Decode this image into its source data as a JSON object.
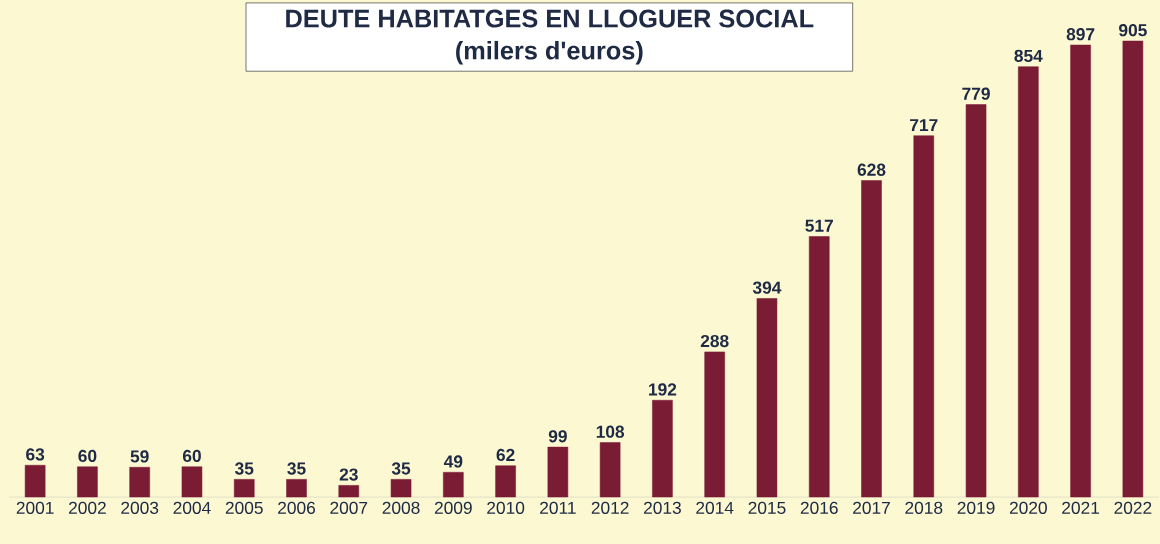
{
  "chart_data": {
    "type": "bar",
    "title": "DEUTE HABITATGES EN LLOGUER SOCIAL",
    "subtitle": "(milers d'euros)",
    "categories": [
      "2001",
      "2002",
      "2003",
      "2004",
      "2005",
      "2006",
      "2007",
      "2008",
      "2009",
      "2010",
      "2011",
      "2012",
      "2013",
      "2014",
      "2015",
      "2016",
      "2017",
      "2018",
      "2019",
      "2020",
      "2021",
      "2022"
    ],
    "values": [
      63,
      60,
      59,
      60,
      35,
      35,
      23,
      35,
      49,
      62,
      99,
      108,
      192,
      288,
      394,
      517,
      628,
      717,
      779,
      854,
      897,
      905
    ],
    "color": "#7a1c34",
    "data_labels": true
  }
}
